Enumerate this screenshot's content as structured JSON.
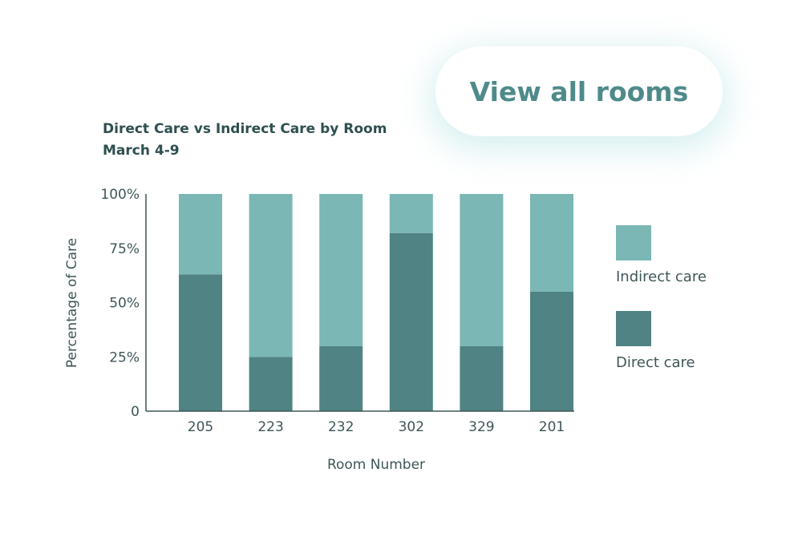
{
  "button": {
    "view_all_label": "View all rooms"
  },
  "colors": {
    "indirect": "#7ab7b5",
    "direct": "#4f8384",
    "axis": "#3e5657"
  },
  "chart_data": {
    "type": "bar",
    "stacked": true,
    "title": "Direct Care vs Indirect Care by Room",
    "subtitle": "March 4-9",
    "xlabel": "Room Number",
    "ylabel": "Percentage of Care",
    "categories": [
      "205",
      "223",
      "232",
      "302",
      "329",
      "201"
    ],
    "yticks": [
      "0",
      "25%",
      "50%",
      "75%",
      "100%"
    ],
    "ylim": [
      0,
      100
    ],
    "grid": false,
    "legend_placement": "right",
    "series": [
      {
        "name": "Direct care",
        "values": [
          63,
          25,
          30,
          82,
          30,
          55
        ]
      },
      {
        "name": "Indirect care",
        "values": [
          37,
          75,
          70,
          18,
          70,
          45
        ]
      }
    ]
  }
}
